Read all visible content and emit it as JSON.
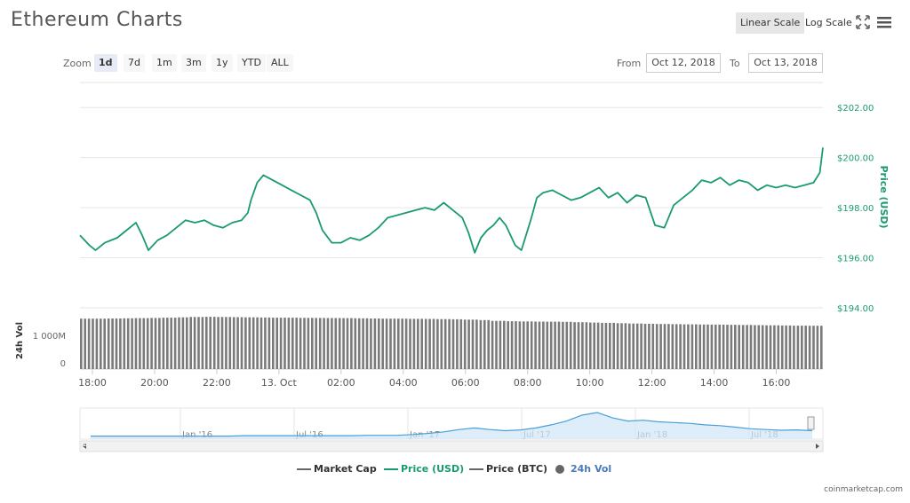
{
  "header": {
    "title": "Ethereum Charts",
    "linear_scale": "Linear Scale",
    "log_scale": "Log Scale",
    "icons": [
      "fullscreen-icon",
      "menu-icon"
    ]
  },
  "zoom": {
    "label": "Zoom",
    "buttons": [
      "1d",
      "7d",
      "1m",
      "3m",
      "1y",
      "YTD",
      "ALL"
    ],
    "active": "1d"
  },
  "range": {
    "from_label": "From",
    "from_value": "Oct 12, 2018",
    "to_label": "To",
    "to_value": "Oct 13, 2018"
  },
  "credit": "coinmarketcap.com",
  "colors": {
    "price_usd": "#1a9b6e",
    "volume": "#7a7a7a",
    "navigator": "#4a9fd8",
    "grid": "#e6e6e6"
  },
  "chart_data": {
    "type": "line",
    "price_axis": {
      "label": "Price (USD)",
      "ylim": [
        194,
        203
      ],
      "ticks": [
        194,
        196,
        198,
        200,
        202
      ],
      "tick_labels": [
        "$194.00",
        "$196.00",
        "$198.00",
        "$200.00",
        "$202.00"
      ]
    },
    "x_axis": {
      "ticks": [
        "18:00",
        "20:00",
        "22:00",
        "13. Oct",
        "02:00",
        "04:00",
        "06:00",
        "08:00",
        "10:00",
        "12:00",
        "14:00",
        "16:00"
      ],
      "tick_hours": [
        18,
        20,
        22,
        24,
        26,
        28,
        30,
        32,
        34,
        36,
        38,
        40
      ],
      "xlim": [
        17.6,
        41.5
      ]
    },
    "series": [
      {
        "name": "Price (USD)",
        "x": [
          17.6,
          17.9,
          18.1,
          18.4,
          18.8,
          19.1,
          19.4,
          19.6,
          19.8,
          20.1,
          20.4,
          20.7,
          21.0,
          21.3,
          21.6,
          21.9,
          22.2,
          22.5,
          22.8,
          23.0,
          23.1,
          23.3,
          23.5,
          23.8,
          24.1,
          24.4,
          24.7,
          25.0,
          25.2,
          25.4,
          25.7,
          26.0,
          26.3,
          26.6,
          26.9,
          27.2,
          27.5,
          27.8,
          28.1,
          28.4,
          28.7,
          29.0,
          29.3,
          29.6,
          29.9,
          30.1,
          30.3,
          30.5,
          30.7,
          30.9,
          31.1,
          31.3,
          31.6,
          31.8,
          32.1,
          32.3,
          32.5,
          32.8,
          33.1,
          33.4,
          33.7,
          34.0,
          34.3,
          34.6,
          34.9,
          35.2,
          35.5,
          35.8,
          36.1,
          36.4,
          36.7,
          37.0,
          37.3,
          37.6,
          37.9,
          38.2,
          38.5,
          38.8,
          39.1,
          39.4,
          39.7,
          40.0,
          40.3,
          40.6,
          40.9,
          41.2,
          41.4,
          41.5
        ],
        "values": [
          196.9,
          196.5,
          196.3,
          196.6,
          196.8,
          197.1,
          197.4,
          196.9,
          196.3,
          196.7,
          196.9,
          197.2,
          197.5,
          197.4,
          197.5,
          197.3,
          197.2,
          197.4,
          197.5,
          197.8,
          198.3,
          199.0,
          199.3,
          199.1,
          198.9,
          198.7,
          198.5,
          198.3,
          197.8,
          197.1,
          196.6,
          196.6,
          196.8,
          196.7,
          196.9,
          197.2,
          197.6,
          197.7,
          197.8,
          197.9,
          198.0,
          197.9,
          198.2,
          197.9,
          197.6,
          197.0,
          196.2,
          196.8,
          197.1,
          197.3,
          197.6,
          197.3,
          196.5,
          196.3,
          197.5,
          198.4,
          198.6,
          198.7,
          198.5,
          198.3,
          198.4,
          198.6,
          198.8,
          198.4,
          198.6,
          198.2,
          198.5,
          198.4,
          197.3,
          197.2,
          198.1,
          198.4,
          198.7,
          199.1,
          199.0,
          199.2,
          198.9,
          199.1,
          199.0,
          198.7,
          198.9,
          198.8,
          198.9,
          198.8,
          198.9,
          199.0,
          199.4,
          200.4
        ]
      },
      {
        "name": "24h Vol",
        "axis_label": "24h Vol",
        "tick_labels": [
          "0",
          "1 000M"
        ],
        "ylim": [
          0,
          1800
        ],
        "values_millions": [
          1550,
          1550,
          1555,
          1560,
          1565,
          1570,
          1580,
          1590,
          1600,
          1605,
          1600,
          1595,
          1590,
          1585,
          1580,
          1578,
          1575,
          1570,
          1568,
          1565,
          1560,
          1555,
          1550,
          1548,
          1545,
          1540,
          1535,
          1530,
          1520,
          1505,
          1480,
          1470,
          1465,
          1460,
          1455,
          1450,
          1440,
          1430,
          1420,
          1410,
          1400,
          1390,
          1385,
          1380,
          1375,
          1370,
          1365,
          1360,
          1355,
          1350,
          1345,
          1340,
          1335,
          1330
        ]
      },
      {
        "name": "Market Cap"
      },
      {
        "name": "Price (BTC)"
      }
    ],
    "navigator": {
      "labels": [
        "Jan '16",
        "Jul '16",
        "Jan '17",
        "Jul '17",
        "Jan '18",
        "Jul '18"
      ],
      "values": [
        1,
        1,
        1,
        1,
        1,
        1,
        1,
        1,
        1,
        1,
        2,
        2,
        2,
        2,
        2,
        2,
        2,
        2,
        3,
        3,
        3,
        5,
        8,
        12,
        18,
        22,
        18,
        15,
        17,
        22,
        30,
        40,
        55,
        62,
        48,
        40,
        42,
        38,
        36,
        34,
        30,
        28,
        24,
        20,
        18,
        16,
        17,
        15
      ]
    }
  }
}
